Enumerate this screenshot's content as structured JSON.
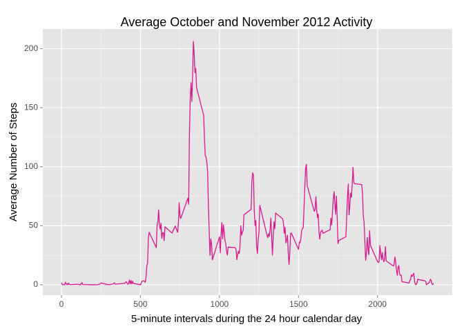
{
  "chart_data": {
    "type": "line",
    "title": "Average October and November 2012 Activity",
    "x_label": "5-minute intervals during the 24 hour calendar day",
    "y_label": "Average Number of Steps",
    "color": "#e0148c",
    "grid": true,
    "xlim": [
      -118,
      2473
    ],
    "xticks": [
      0,
      500,
      1000,
      1500,
      2000
    ],
    "ylim": [
      -8.8,
      216.7
    ],
    "yticks": [
      0,
      50,
      100,
      150,
      200
    ],
    "x": [
      0,
      5,
      10,
      15,
      20,
      25,
      30,
      35,
      40,
      45,
      50,
      55,
      100,
      110,
      120,
      125,
      130,
      135,
      200,
      230,
      245,
      250,
      300,
      325,
      335,
      340,
      400,
      410,
      420,
      425,
      430,
      435,
      440,
      445,
      450,
      455,
      500,
      510,
      520,
      525,
      530,
      535,
      540,
      545,
      550,
      555,
      600,
      605,
      610,
      615,
      620,
      625,
      630,
      635,
      640,
      645,
      650,
      655,
      700,
      720,
      735,
      740,
      745,
      750,
      755,
      800,
      805,
      810,
      815,
      820,
      825,
      830,
      835,
      840,
      845,
      850,
      855,
      900,
      905,
      910,
      915,
      920,
      925,
      930,
      935,
      940,
      945,
      950,
      955,
      1000,
      1005,
      1010,
      1015,
      1020,
      1025,
      1030,
      1035,
      1040,
      1045,
      1050,
      1055,
      1100,
      1105,
      1110,
      1115,
      1120,
      1125,
      1130,
      1135,
      1140,
      1145,
      1150,
      1155,
      1200,
      1205,
      1210,
      1215,
      1220,
      1225,
      1230,
      1235,
      1240,
      1245,
      1250,
      1255,
      1300,
      1305,
      1310,
      1315,
      1320,
      1325,
      1330,
      1335,
      1340,
      1345,
      1350,
      1355,
      1400,
      1405,
      1410,
      1415,
      1420,
      1425,
      1430,
      1435,
      1440,
      1445,
      1450,
      1455,
      1500,
      1505,
      1510,
      1515,
      1520,
      1525,
      1530,
      1535,
      1540,
      1545,
      1550,
      1555,
      1600,
      1605,
      1610,
      1615,
      1620,
      1625,
      1630,
      1635,
      1640,
      1645,
      1650,
      1655,
      1700,
      1705,
      1710,
      1715,
      1720,
      1725,
      1730,
      1735,
      1740,
      1745,
      1750,
      1755,
      1800,
      1805,
      1810,
      1815,
      1820,
      1825,
      1830,
      1835,
      1840,
      1845,
      1850,
      1855,
      1900,
      1905,
      1910,
      1915,
      1920,
      1925,
      1930,
      1935,
      1940,
      1945,
      1950,
      1955,
      2000,
      2005,
      2010,
      2015,
      2020,
      2025,
      2030,
      2035,
      2040,
      2045,
      2050,
      2055,
      2100,
      2105,
      2110,
      2115,
      2120,
      2125,
      2130,
      2135,
      2140,
      2145,
      2150,
      2155,
      2200,
      2205,
      2210,
      2215,
      2220,
      2225,
      2230,
      2235,
      2240,
      2245,
      2250,
      2255,
      2300,
      2305,
      2310,
      2315,
      2320,
      2325,
      2330,
      2335,
      2340,
      2345,
      2350,
      2355
    ],
    "values": [
      1.7,
      0.3,
      0.1,
      0.2,
      0.1,
      2.1,
      0.5,
      0.9,
      0,
      1.5,
      0.3,
      0.1,
      0.4,
      0.2,
      0,
      1.1,
      1.8,
      0.2,
      0,
      0.1,
      0.7,
      1.5,
      0,
      0.6,
      1.6,
      0.5,
      1.2,
      2.6,
      0.3,
      0.9,
      4.1,
      0.7,
      3.5,
      0.8,
      3.1,
      1.1,
      0,
      3,
      3.3,
      2.9,
      2.1,
      6,
      16,
      18.3,
      39.5,
      44.5,
      31.5,
      49.3,
      53.8,
      63.5,
      49.9,
      47.1,
      52.2,
      39.3,
      44,
      44.2,
      37.4,
      49.1,
      43.8,
      49.8,
      44.4,
      52.3,
      69.6,
      57.8,
      56.2,
      73.4,
      68.2,
      129.4,
      157.5,
      171.2,
      155.4,
      177.3,
      206.2,
      195.9,
      179.6,
      183.4,
      167,
      143.5,
      124,
      109.1,
      108.1,
      103.7,
      95.9,
      66.2,
      45.2,
      24.8,
      38.8,
      35,
      21.1,
      40.6,
      27,
      42.4,
      52.7,
      38.9,
      50.8,
      44.3,
      37.4,
      34.7,
      28.3,
      25.1,
      31.9,
      31.4,
      29.7,
      21.3,
      25.5,
      28.4,
      26.5,
      33.4,
      50,
      42,
      44.6,
      46,
      59.3,
      63.9,
      87.7,
      94.8,
      92.8,
      63.4,
      50.2,
      54.5,
      32.4,
      26.5,
      37.7,
      45.1,
      67.3,
      42.3,
      39.9,
      43.3,
      40.9,
      46.2,
      56.4,
      42.8,
      25.1,
      39.97,
      53.5,
      47.3,
      60.8,
      55.8,
      51.9,
      43.6,
      48.7,
      35.5,
      37.6,
      42,
      27.5,
      17.1,
      26.1,
      43.7,
      43.7,
      30,
      36.1,
      35.5,
      38.8,
      46,
      47.8,
      48.1,
      65.3,
      82.9,
      98.7,
      102.1,
      84,
      62.1,
      64.1,
      74.5,
      63.2,
      56.9,
      59.8,
      43.9,
      38.6,
      44.7,
      45.5,
      46.2,
      43.7,
      46.6,
      56.3,
      50.7,
      61.2,
      72.7,
      78.9,
      68.9,
      59.7,
      75.1,
      56.5,
      34.8,
      37.5,
      40.7,
      58,
      74.7,
      85.3,
      59.3,
      67.8,
      77.7,
      74.2,
      85.3,
      99.5,
      86.6,
      85.6,
      84.9,
      77.8,
      58,
      53.4,
      36.3,
      20.7,
      27.4,
      40,
      30.2,
      25.5,
      45.7,
      33.5,
      19.6,
      19,
      19.3,
      33.3,
      26.8,
      21.2,
      27.3,
      21.3,
      19.5,
      21.3,
      32.3,
      20.2,
      15.9,
      17.2,
      23.5,
      19.2,
      12.5,
      8,
      14.7,
      16.3,
      8.7,
      7.8,
      8.1,
      2.6,
      1.5,
      3.7,
      4.8,
      8.5,
      7.1,
      8.7,
      9.8,
      2.2,
      0.3,
      0.1,
      1.6,
      4.6,
      3.3,
      2.8,
      0,
      0.8,
      1,
      1.6,
      2.6,
      4.7,
      3.3,
      0.6,
      0.2,
      1.1
    ]
  }
}
